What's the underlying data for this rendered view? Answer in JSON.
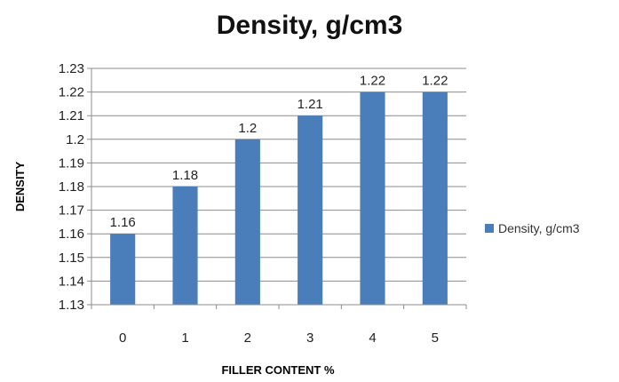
{
  "chart_data": {
    "type": "bar",
    "title": "Density, g/cm3",
    "xlabel": "FILLER CONTENT %",
    "ylabel": "DENSITY",
    "categories": [
      "0",
      "1",
      "2",
      "3",
      "4",
      "5"
    ],
    "series": [
      {
        "name": "Density, g/cm3",
        "values": [
          1.16,
          1.18,
          1.2,
          1.21,
          1.22,
          1.22
        ],
        "data_labels": [
          "1.16",
          "1.18",
          "1.2",
          "1.21",
          "1.22",
          "1.22"
        ],
        "color": "#4a7ebb"
      }
    ],
    "ylim": [
      1.13,
      1.23
    ],
    "yticks": [
      "1.13",
      "1.14",
      "1.15",
      "1.16",
      "1.17",
      "1.18",
      "1.19",
      "1.2",
      "1.21",
      "1.22",
      "1.23"
    ],
    "grid": true,
    "legend_position": "right"
  }
}
